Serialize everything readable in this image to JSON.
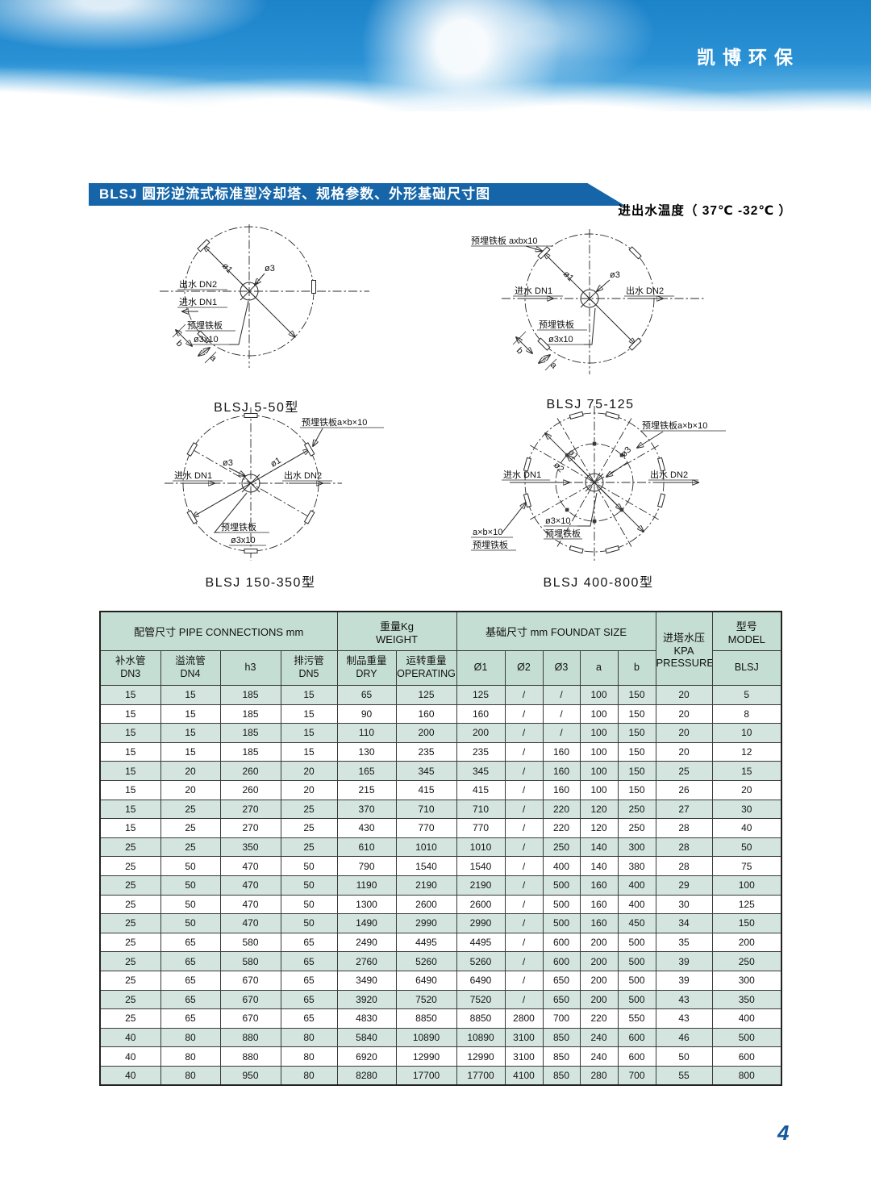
{
  "brand": {
    "logo": "凯博环保"
  },
  "section": {
    "title": "BLSJ  圆形逆流式标准型冷却塔、规格参数、外形基础尺寸图",
    "subtitle": "进出水温度（ 37℃ -32℃ ）"
  },
  "diagrams": [
    {
      "caption": "BLSJ 5-50型",
      "labels": {
        "d1": "ø1",
        "d3": "ø3",
        "outlet": "出水 DN2",
        "inlet": "进水 DN1",
        "plate": "预埋铁板",
        "plate_size": "ø3x10",
        "dim_b": "b",
        "dim_a": "a"
      }
    },
    {
      "caption": "BLSJ 75-125",
      "labels": {
        "plate_top": "预埋铁板 axbx10",
        "d1": "ø1",
        "d3": "ø3",
        "inlet": "进水 DN1",
        "outlet": "出水 DN2",
        "plate": "预埋铁板",
        "plate_size": "ø3x10",
        "dim_b": "b",
        "dim_a": "a"
      }
    },
    {
      "caption": "BLSJ 150-350型",
      "labels": {
        "plate_top": "预埋铁板a×b×10",
        "d1": "ø1",
        "d3": "ø3",
        "inlet": "进水 DN1",
        "outlet": "出水 DN2",
        "plate": "预埋铁板",
        "plate_size": "ø3x10"
      }
    },
    {
      "caption": "BLSJ 400-800型",
      "labels": {
        "plate_top": "预埋铁板a×b×10",
        "d1": "ø1",
        "d2": "ø2",
        "d3": "ø3",
        "inlet": "进水 DN1",
        "outlet": "出水 DN2",
        "plate_size_small": "ø3×10",
        "plate": "预埋铁板",
        "plate_bottom_size": "a×b×10",
        "plate_bottom": "预埋铁板"
      }
    }
  ],
  "table": {
    "groups": {
      "pipe": "配管尺寸 PIPE CONNECTIONS  mm",
      "weight_cn": "重量Kg",
      "weight_en": "WEIGHT",
      "foundation": "基础尺寸 mm  FOUNDAT SIZE",
      "pressure_cn": "进塔水压KPA",
      "pressure_en": "PRESSURE",
      "model_cn": "型号",
      "model_en": "MODEL"
    },
    "subheaders": [
      {
        "l1": "补水管",
        "l2": "DN3"
      },
      {
        "l1": "溢流管",
        "l2": "DN4"
      },
      {
        "l1": "h3"
      },
      {
        "l1": "排污管",
        "l2": "DN5"
      },
      {
        "l1": "制品重量",
        "l2": "DRY"
      },
      {
        "l1": "运转重量",
        "l2": "OPERATING"
      },
      {
        "l1": "Ø1"
      },
      {
        "l1": "Ø2"
      },
      {
        "l1": "Ø3"
      },
      {
        "l1": "a"
      },
      {
        "l1": "b"
      },
      {
        "l1": "BLSJ"
      }
    ],
    "rows": [
      [
        "15",
        "15",
        "185",
        "15",
        "65",
        "125",
        "125",
        "/",
        "/",
        "100",
        "150",
        "20",
        "5"
      ],
      [
        "15",
        "15",
        "185",
        "15",
        "90",
        "160",
        "160",
        "/",
        "/",
        "100",
        "150",
        "20",
        "8"
      ],
      [
        "15",
        "15",
        "185",
        "15",
        "110",
        "200",
        "200",
        "/",
        "/",
        "100",
        "150",
        "20",
        "10"
      ],
      [
        "15",
        "15",
        "185",
        "15",
        "130",
        "235",
        "235",
        "/",
        "160",
        "100",
        "150",
        "20",
        "12"
      ],
      [
        "15",
        "20",
        "260",
        "20",
        "165",
        "345",
        "345",
        "/",
        "160",
        "100",
        "150",
        "25",
        "15"
      ],
      [
        "15",
        "20",
        "260",
        "20",
        "215",
        "415",
        "415",
        "/",
        "160",
        "100",
        "150",
        "26",
        "20"
      ],
      [
        "15",
        "25",
        "270",
        "25",
        "370",
        "710",
        "710",
        "/",
        "220",
        "120",
        "250",
        "27",
        "30"
      ],
      [
        "15",
        "25",
        "270",
        "25",
        "430",
        "770",
        "770",
        "/",
        "220",
        "120",
        "250",
        "28",
        "40"
      ],
      [
        "25",
        "25",
        "350",
        "25",
        "610",
        "1010",
        "1010",
        "/",
        "250",
        "140",
        "300",
        "28",
        "50"
      ],
      [
        "25",
        "50",
        "470",
        "50",
        "790",
        "1540",
        "1540",
        "/",
        "400",
        "140",
        "380",
        "28",
        "75"
      ],
      [
        "25",
        "50",
        "470",
        "50",
        "1190",
        "2190",
        "2190",
        "/",
        "500",
        "160",
        "400",
        "29",
        "100"
      ],
      [
        "25",
        "50",
        "470",
        "50",
        "1300",
        "2600",
        "2600",
        "/",
        "500",
        "160",
        "400",
        "30",
        "125"
      ],
      [
        "25",
        "50",
        "470",
        "50",
        "1490",
        "2990",
        "2990",
        "/",
        "500",
        "160",
        "450",
        "34",
        "150"
      ],
      [
        "25",
        "65",
        "580",
        "65",
        "2490",
        "4495",
        "4495",
        "/",
        "600",
        "200",
        "500",
        "35",
        "200"
      ],
      [
        "25",
        "65",
        "580",
        "65",
        "2760",
        "5260",
        "5260",
        "/",
        "600",
        "200",
        "500",
        "39",
        "250"
      ],
      [
        "25",
        "65",
        "670",
        "65",
        "3490",
        "6490",
        "6490",
        "/",
        "650",
        "200",
        "500",
        "39",
        "300"
      ],
      [
        "25",
        "65",
        "670",
        "65",
        "3920",
        "7520",
        "7520",
        "/",
        "650",
        "200",
        "500",
        "43",
        "350"
      ],
      [
        "25",
        "65",
        "670",
        "65",
        "4830",
        "8850",
        "8850",
        "2800",
        "700",
        "220",
        "550",
        "43",
        "400"
      ],
      [
        "40",
        "80",
        "880",
        "80",
        "5840",
        "10890",
        "10890",
        "3100",
        "850",
        "240",
        "600",
        "46",
        "500"
      ],
      [
        "40",
        "80",
        "880",
        "80",
        "6920",
        "12990",
        "12990",
        "3100",
        "850",
        "240",
        "600",
        "50",
        "600"
      ],
      [
        "40",
        "80",
        "950",
        "80",
        "8280",
        "17700",
        "17700",
        "4100",
        "850",
        "280",
        "700",
        "55",
        "800"
      ]
    ]
  },
  "page": {
    "number": "4"
  },
  "colors": {
    "banner_blue": "#1565a8",
    "header_green": "#c5ded4",
    "row_green": "#d3e5de",
    "sky_blue": "#2a91d5"
  }
}
